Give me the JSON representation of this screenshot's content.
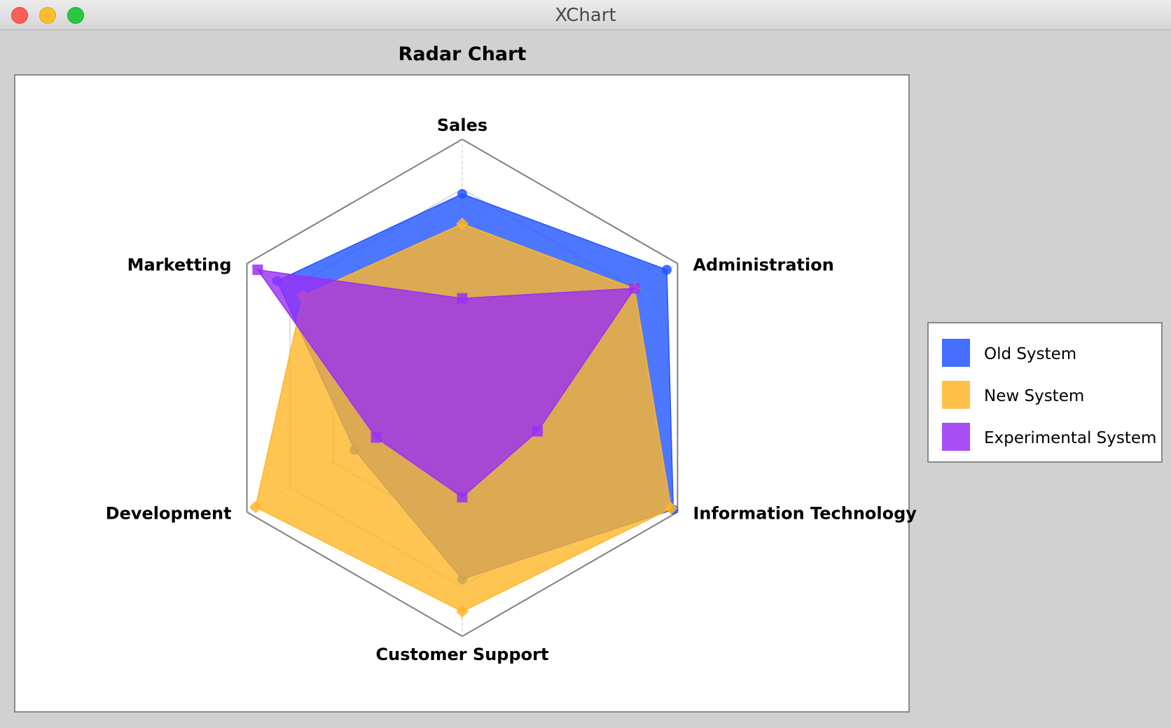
{
  "window": {
    "title": "XChart"
  },
  "colors": {
    "old_system": "#2255ff",
    "new_system": "#ffb628",
    "experimental_system": "#9a30f5",
    "background": "#d1d1d1",
    "plot_background": "#ffffff"
  },
  "chart_data": {
    "type": "radar",
    "title": "Radar Chart",
    "axes": [
      "Sales",
      "Administration",
      "Information Technology",
      "Customer Support",
      "Development",
      "Marketting"
    ],
    "range": [
      0,
      1
    ],
    "grid": true,
    "legend_position": "right",
    "series": [
      {
        "name": "Old System",
        "values": [
          0.78,
          0.95,
          0.98,
          0.77,
          0.5,
          0.86
        ],
        "marker": "circle"
      },
      {
        "name": "New System",
        "values": [
          0.66,
          0.8,
          0.97,
          0.9,
          0.96,
          0.74
        ],
        "marker": "diamond"
      },
      {
        "name": "Experimental System",
        "values": [
          0.36,
          0.8,
          0.35,
          0.44,
          0.4,
          0.95
        ],
        "marker": "square"
      }
    ]
  }
}
